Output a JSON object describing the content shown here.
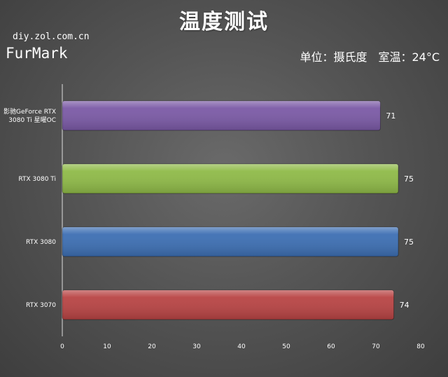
{
  "header": {
    "title": "温度测试",
    "watermark": "diy.zol.com.cn",
    "benchmark": "FurMark",
    "unit_text": "单位：摄氏度　室温：24°C"
  },
  "chart_data": {
    "type": "bar",
    "orientation": "horizontal",
    "title": "温度测试",
    "categories": [
      [
        "影驰GeForce RTX",
        "3080 Ti 星曜OC"
      ],
      [
        "RTX 3080 Ti"
      ],
      [
        "RTX 3080"
      ],
      [
        "RTX 3070"
      ]
    ],
    "values": [
      71,
      75,
      75,
      74
    ],
    "colors": [
      "#7b5aa6",
      "#8fba48",
      "#3d6fb3",
      "#b84444"
    ],
    "xlim": [
      0,
      80
    ],
    "xticks": [
      0,
      10,
      20,
      30,
      40,
      50,
      60,
      70,
      80
    ],
    "grid": false,
    "legend": "none"
  }
}
